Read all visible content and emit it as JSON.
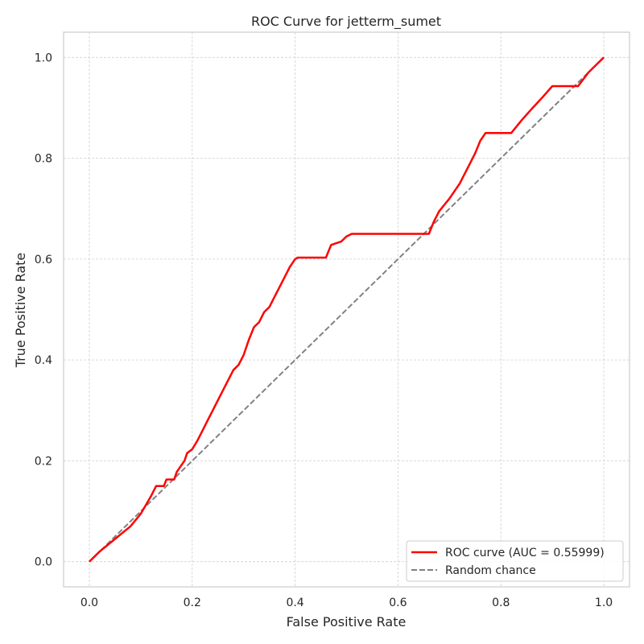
{
  "chart_data": {
    "type": "line",
    "title": "ROC Curve for jetterm_sumet",
    "xlabel": "False Positive Rate",
    "ylabel": "True Positive Rate",
    "xlim": [
      -0.05,
      1.05
    ],
    "ylim": [
      -0.05,
      1.05
    ],
    "xticks": [
      "0.0",
      "0.2",
      "0.4",
      "0.6",
      "0.8",
      "1.0"
    ],
    "yticks": [
      "0.0",
      "0.2",
      "0.4",
      "0.6",
      "0.8",
      "1.0"
    ],
    "grid": true,
    "legend_position": "bottom-right",
    "series": [
      {
        "name": "ROC curve (AUC = 0.55999)",
        "color": "#ff0000",
        "style": "solid",
        "x": [
          0.0,
          0.02,
          0.05,
          0.08,
          0.1,
          0.12,
          0.13,
          0.145,
          0.15,
          0.165,
          0.17,
          0.185,
          0.19,
          0.2,
          0.21,
          0.22,
          0.23,
          0.24,
          0.25,
          0.26,
          0.27,
          0.28,
          0.29,
          0.3,
          0.31,
          0.32,
          0.33,
          0.34,
          0.35,
          0.36,
          0.37,
          0.38,
          0.39,
          0.4,
          0.405,
          0.42,
          0.46,
          0.47,
          0.49,
          0.5,
          0.51,
          0.6,
          0.66,
          0.67,
          0.68,
          0.7,
          0.72,
          0.74,
          0.75,
          0.76,
          0.77,
          0.8,
          0.82,
          0.84,
          0.86,
          0.88,
          0.9,
          0.95,
          0.97,
          1.0
        ],
        "y": [
          0.0,
          0.02,
          0.045,
          0.07,
          0.095,
          0.13,
          0.15,
          0.15,
          0.163,
          0.163,
          0.178,
          0.2,
          0.215,
          0.223,
          0.24,
          0.26,
          0.28,
          0.3,
          0.32,
          0.34,
          0.36,
          0.38,
          0.39,
          0.41,
          0.44,
          0.465,
          0.475,
          0.495,
          0.505,
          0.525,
          0.545,
          0.565,
          0.585,
          0.6,
          0.603,
          0.603,
          0.603,
          0.628,
          0.635,
          0.645,
          0.65,
          0.65,
          0.65,
          0.675,
          0.695,
          0.72,
          0.75,
          0.79,
          0.81,
          0.835,
          0.85,
          0.85,
          0.85,
          0.875,
          0.898,
          0.92,
          0.943,
          0.943,
          0.97,
          1.0
        ]
      },
      {
        "name": "Random chance",
        "color": "#808080",
        "style": "dashed",
        "x": [
          0.0,
          1.0
        ],
        "y": [
          0.0,
          1.0
        ]
      }
    ]
  }
}
